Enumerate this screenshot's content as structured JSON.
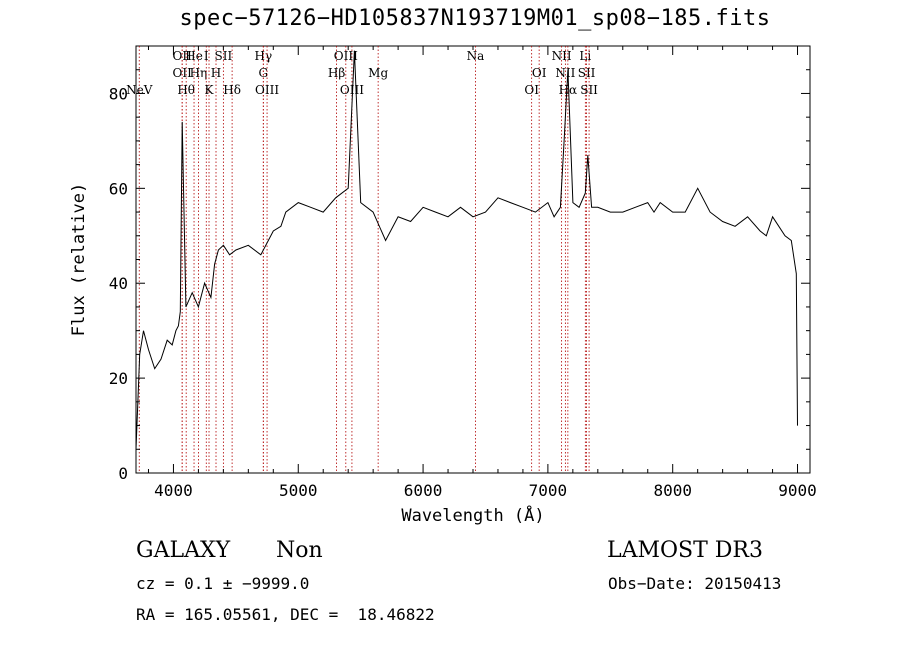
{
  "title": "spec−57126−HD105837N193719M01_sp08−185.fits",
  "info": {
    "class": "GALAXY",
    "subclass": "Non",
    "survey": "LAMOST DR3",
    "cz": "cz = 0.1 ± −9999.0",
    "obs_date": "Obs−Date: 20150413",
    "coords": "RA = 165.05561, DEC =  18.46822"
  },
  "chart_data": {
    "type": "line",
    "xlabel": "Wavelength (Å)",
    "ylabel": "Flux (relative)",
    "xlim": [
      3700,
      9100
    ],
    "ylim": [
      0,
      90
    ],
    "xticks": [
      4000,
      5000,
      6000,
      7000,
      8000,
      9000
    ],
    "yticks": [
      0,
      20,
      40,
      60,
      80
    ],
    "line_color": "#000000",
    "marker_color": "#b00000",
    "series": [
      {
        "x": [
          3700,
          3730,
          3760,
          3800,
          3850,
          3900,
          3950,
          3990,
          4020,
          4040,
          4055,
          4070,
          4100,
          4150,
          4200,
          4250,
          4300,
          4330,
          4360,
          4400,
          4450,
          4500,
          4600,
          4700,
          4800,
          4861,
          4900,
          5000,
          5100,
          5200,
          5300,
          5400,
          5450,
          5500,
          5600,
          5700,
          5800,
          5900,
          6000,
          6100,
          6200,
          6300,
          6400,
          6500,
          6600,
          6700,
          6800,
          6900,
          7000,
          7050,
          7100,
          7130,
          7160,
          7200,
          7250,
          7300,
          7320,
          7350,
          7400,
          7500,
          7600,
          7700,
          7800,
          7850,
          7900,
          8000,
          8100,
          8200,
          8300,
          8400,
          8500,
          8600,
          8700,
          8750,
          8800,
          8900,
          8950,
          8990,
          9000
        ],
        "y": [
          5,
          25,
          30,
          26,
          22,
          24,
          28,
          27,
          30,
          31,
          34,
          74,
          35,
          38,
          35,
          40,
          37,
          44,
          47,
          48,
          46,
          47,
          48,
          46,
          51,
          52,
          55,
          57,
          56,
          55,
          58,
          60,
          89,
          57,
          55,
          49,
          54,
          53,
          56,
          55,
          54,
          56,
          54,
          55,
          58,
          57,
          56,
          55,
          57,
          54,
          56,
          70,
          85,
          57,
          56,
          59,
          67,
          56,
          56,
          55,
          55,
          56,
          57,
          55,
          57,
          55,
          55,
          60,
          55,
          53,
          52,
          54,
          51,
          50,
          54,
          50,
          49,
          42,
          10
        ]
      }
    ],
    "lines": [
      {
        "wave": 3726,
        "label": "NeV",
        "row": 3
      },
      {
        "wave": 4070,
        "label": "OII",
        "row": 1
      },
      {
        "wave": 4070,
        "label": "OII",
        "row": 2
      },
      {
        "wave": 4102,
        "label": "Hθ",
        "row": 3
      },
      {
        "wave": 4165,
        "label": "He",
        "row": 1
      },
      {
        "wave": 4200,
        "label": "Hη",
        "row": 2
      },
      {
        "wave": 4263,
        "label": "I",
        "row": 1
      },
      {
        "wave": 4285,
        "label": "K",
        "row": 3
      },
      {
        "wave": 4341,
        "label": "H",
        "row": 2
      },
      {
        "wave": 4400,
        "label": "SII",
        "row": 1
      },
      {
        "wave": 4470,
        "label": "Hδ",
        "row": 3
      },
      {
        "wave": 4720,
        "label": "Hγ",
        "row": 1
      },
      {
        "wave": 4720,
        "label": "G",
        "row": 2
      },
      {
        "wave": 4750,
        "label": "OIII",
        "row": 3
      },
      {
        "wave": 5307,
        "label": "Hβ",
        "row": 2
      },
      {
        "wave": 5381,
        "label": "OIII",
        "row": 1
      },
      {
        "wave": 5430,
        "label": "OIII",
        "row": 3
      },
      {
        "wave": 5640,
        "label": "Mg",
        "row": 2
      },
      {
        "wave": 6420,
        "label": "Na",
        "row": 1
      },
      {
        "wave": 6870,
        "label": "OI",
        "row": 3
      },
      {
        "wave": 6930,
        "label": "OI",
        "row": 2
      },
      {
        "wave": 7110,
        "label": "NII",
        "row": 1
      },
      {
        "wave": 7140,
        "label": "NII",
        "row": 2
      },
      {
        "wave": 7160,
        "label": "Hα",
        "row": 3
      },
      {
        "wave": 7300,
        "label": "Li",
        "row": 1
      },
      {
        "wave": 7310,
        "label": "SII",
        "row": 2
      },
      {
        "wave": 7330,
        "label": "SII",
        "row": 3
      }
    ]
  }
}
